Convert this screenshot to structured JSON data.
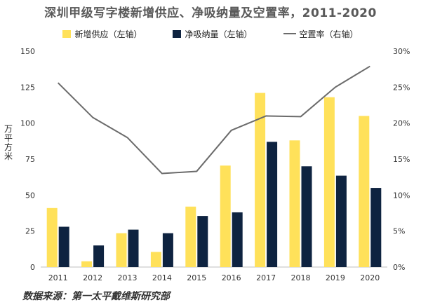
{
  "title": "深圳甲级写字楼新增供应、净吸纳量及空置率，2011-2020",
  "source": "数据来源：第一太平戴维斯研究部",
  "y_axis_label": "万平方米",
  "legend": {
    "supply": "新增供应（左轴）",
    "absorption": "净吸纳量（左轴）",
    "vacancy": "空置率（右轴）"
  },
  "colors": {
    "supply": "#FFE15A",
    "absorption": "#0E2340",
    "vacancy": "#6B6B6B",
    "axis": "#BFBFBF"
  },
  "chart_data": {
    "type": "bar",
    "title": "深圳甲级写字楼新增供应、净吸纳量及空置率，2011-2020",
    "ylabel": "万平方米",
    "categories": [
      "2011",
      "2012",
      "2013",
      "2014",
      "2015",
      "2016",
      "2017",
      "2018",
      "2019",
      "2020"
    ],
    "series": [
      {
        "name": "新增供应（左轴）",
        "type": "bar",
        "axis": "left",
        "values": [
          41,
          4,
          23.5,
          10.5,
          42,
          70.5,
          121,
          88,
          118,
          105
        ]
      },
      {
        "name": "净吸纳量（左轴）",
        "type": "bar",
        "axis": "left",
        "values": [
          28,
          15,
          26,
          23.5,
          35.5,
          38,
          87,
          70,
          63.5,
          55
        ]
      },
      {
        "name": "空置率（右轴）",
        "type": "line",
        "axis": "right",
        "values": [
          25.6,
          20.8,
          18.0,
          13.0,
          13.3,
          19.0,
          21.0,
          20.9,
          25.0,
          27.9
        ]
      }
    ],
    "ylim": [
      0,
      150
    ],
    "yticks": [
      "0",
      "25",
      "50",
      "75",
      "100",
      "125",
      "150"
    ],
    "y2lim": [
      0,
      30
    ],
    "y2ticks": [
      "0%",
      "5%",
      "10%",
      "15%",
      "20%",
      "25%",
      "30%"
    ],
    "legend_position": "top",
    "grid": false
  }
}
